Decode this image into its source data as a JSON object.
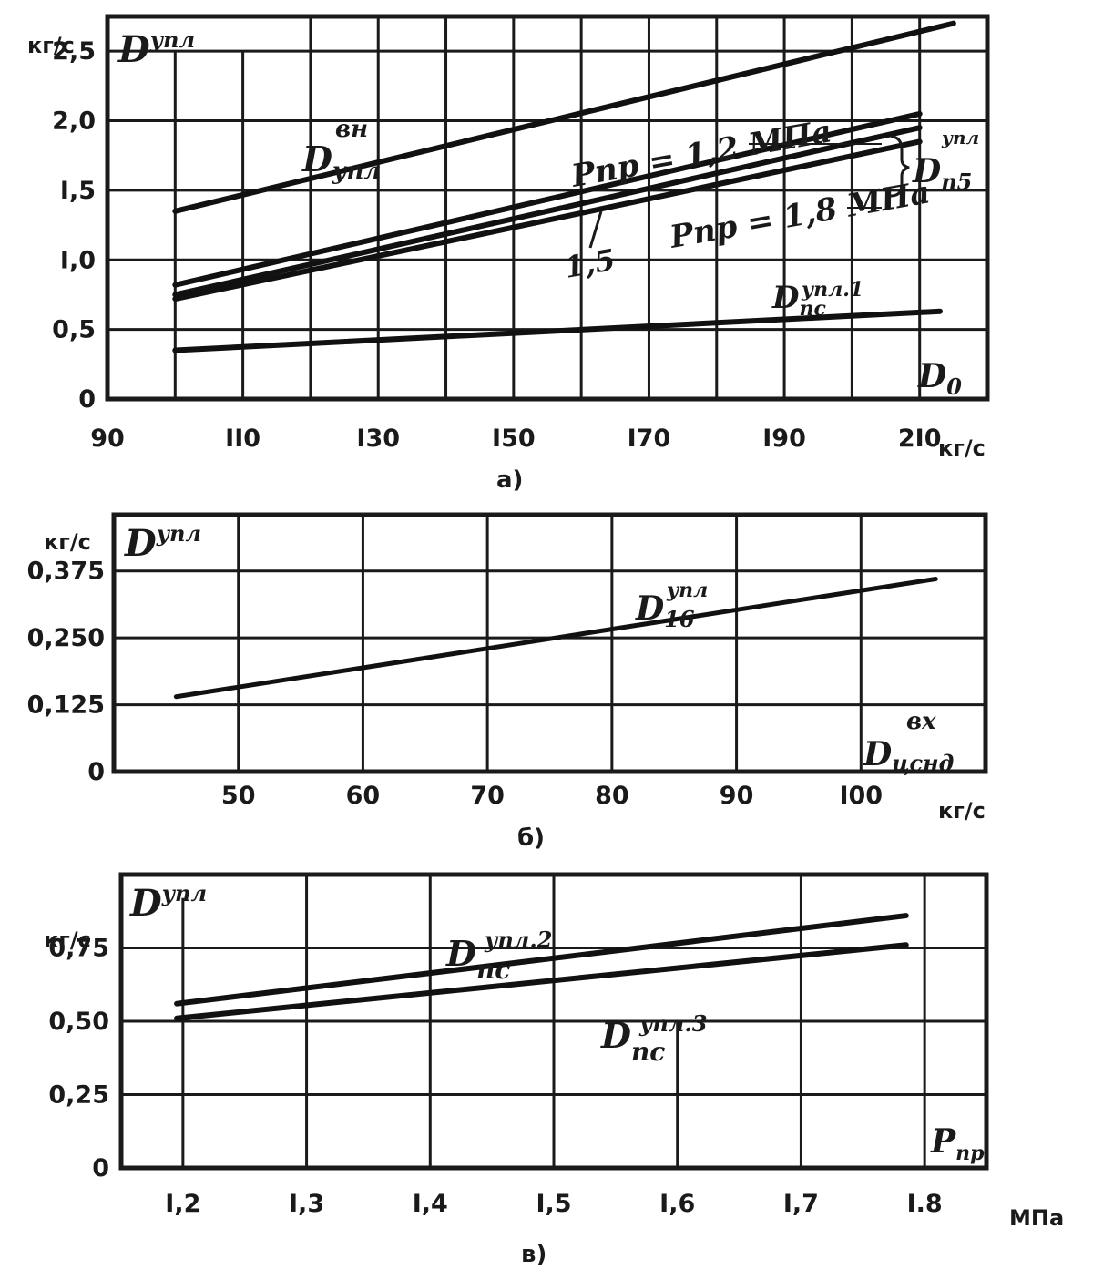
{
  "chart_data": [
    {
      "type": "line",
      "caption": "а)",
      "y_unit": "кг/с",
      "x_unit": "кг/с",
      "y_symbol": "D",
      "y_symbol_sup": "упл",
      "x_axis_label": "D",
      "x_axis_label_sub": "0",
      "xlim": [
        90,
        220
      ],
      "ylim": [
        0,
        2.75
      ],
      "xticks": [
        "90",
        "II0",
        "I30",
        "I50",
        "I70",
        "I90",
        "2I0"
      ],
      "yticks": [
        "0",
        "0,5",
        "I,0",
        "I,5",
        "2,0",
        "2,5"
      ],
      "grid": true,
      "series": [
        {
          "name": "D_упл^вн",
          "x": [
            100,
            215
          ],
          "y": [
            1.35,
            2.7
          ]
        },
        {
          "name": "Pпр = 1,2 МПа",
          "x": [
            100,
            210
          ],
          "y": [
            0.82,
            2.05
          ]
        },
        {
          "name": "1,5",
          "x": [
            100,
            210
          ],
          "y": [
            0.75,
            1.95
          ]
        },
        {
          "name": "Pпр = 1,8 МПа",
          "x": [
            100,
            210
          ],
          "y": [
            0.72,
            1.85
          ]
        },
        {
          "name": "D_пс^упл.1",
          "x": [
            100,
            213
          ],
          "y": [
            0.35,
            0.63
          ]
        }
      ],
      "annotations": {
        "vn_sub": "упл",
        "vn_sup": "вн",
        "p12": "Pпр = 1,2 МПа",
        "p18": "Pпр = 1,8 МПа",
        "p15": "1,5",
        "p5_sub": "п5",
        "p5_sup": "упл",
        "ps1_sub": "пс",
        "ps1_sup": "упл.1"
      }
    },
    {
      "type": "line",
      "caption": "б)",
      "y_unit": "кг/с",
      "x_unit": "кг/с",
      "y_symbol": "D",
      "y_symbol_sup": "упл",
      "x_axis_label": "D",
      "x_axis_label_sub": "цснд",
      "x_axis_label_sup": "вх",
      "xlim": [
        40,
        110
      ],
      "ylim": [
        0,
        0.48
      ],
      "xticks": [
        "50",
        "60",
        "70",
        "80",
        "90",
        "I00"
      ],
      "yticks": [
        "0",
        "0,125",
        "0,250",
        "0,375"
      ],
      "grid": true,
      "series": [
        {
          "name": "D_16^упл",
          "x": [
            45,
            106
          ],
          "y": [
            0.14,
            0.36
          ]
        }
      ],
      "annotations": {
        "l16_sub": "16",
        "l16_sup": "упл"
      }
    },
    {
      "type": "line",
      "caption": "в)",
      "y_unit": "кг/с",
      "x_unit": "МПа",
      "y_symbol": "D",
      "y_symbol_sup": "упл",
      "x_axis_label": "P",
      "x_axis_label_sub": "пр",
      "xlim": [
        1.15,
        1.85
      ],
      "ylim": [
        0,
        1.0
      ],
      "xticks": [
        "I,2",
        "I,3",
        "I,4",
        "I,5",
        "I,6",
        "I,7",
        "I.8"
      ],
      "yticks": [
        "0",
        "0,25",
        "0,50",
        "0,75"
      ],
      "grid": true,
      "series": [
        {
          "name": "D_пс^упл.2",
          "x": [
            1.195,
            1.785
          ],
          "y": [
            0.56,
            0.86
          ]
        },
        {
          "name": "D_пс^упл.3",
          "x": [
            1.195,
            1.785
          ],
          "y": [
            0.51,
            0.76
          ]
        }
      ],
      "annotations": {
        "ps2_sub": "пс",
        "ps2_sup": "упл.2",
        "ps3_sub": "пс",
        "ps3_sup": "упл.3"
      }
    }
  ]
}
